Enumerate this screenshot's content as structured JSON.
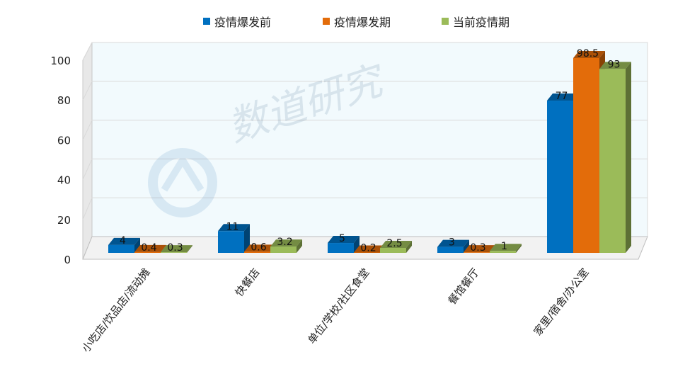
{
  "legend": {
    "items": [
      {
        "label": "疫情爆发前",
        "color": "#0070C0"
      },
      {
        "label": "疫情爆发期",
        "color": "#E36C0A"
      },
      {
        "label": "当前疫情期",
        "color": "#9BBB59"
      }
    ]
  },
  "watermark": {
    "text": "数道研究"
  },
  "chart_data": {
    "type": "bar",
    "title": "",
    "xlabel": "",
    "ylabel": "",
    "ylim": [
      0,
      100
    ],
    "yticks": [
      0,
      20,
      40,
      60,
      80,
      100
    ],
    "grid": true,
    "legend_position": "top-center",
    "categories": [
      "小吃店/饮品店/流动摊",
      "快餐店",
      "单位/学校/社区食堂",
      "餐馆餐厅",
      "家里/宿舍/办公室"
    ],
    "series": [
      {
        "name": "疫情爆发前",
        "color": "#0070C0",
        "values": [
          4,
          11,
          5,
          3,
          77
        ],
        "labels": [
          "4",
          "11",
          "5",
          "3",
          "77"
        ]
      },
      {
        "name": "疫情爆发期",
        "color": "#E36C0A",
        "values": [
          0.4,
          0.6,
          0.2,
          0.3,
          98.5
        ],
        "labels": [
          "0.4",
          "0.6",
          "0.2",
          "0.3",
          "98.5"
        ]
      },
      {
        "name": "当前疫情期",
        "color": "#9BBB59",
        "values": [
          0.3,
          3.2,
          2.5,
          1,
          93
        ],
        "labels": [
          "0.3",
          "3.2",
          "2.5",
          "1",
          "93"
        ]
      }
    ]
  }
}
